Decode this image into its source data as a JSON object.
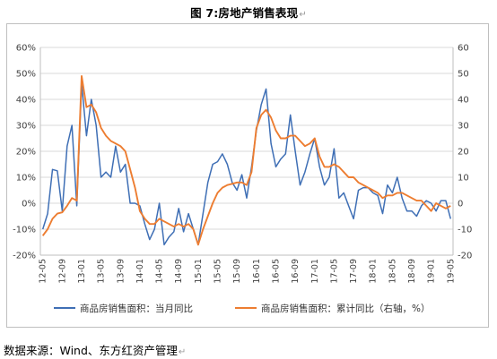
{
  "title": "图 7:房地产销售表现",
  "return_mark": "↵",
  "source": "数据来源：Wind、东方红资产管理",
  "colors": {
    "series1": "#3F6FB5",
    "series2": "#ED7D31",
    "grid": "#d9d9d9",
    "axis": "#bfbfbf"
  },
  "chart_data": {
    "type": "line",
    "title": "",
    "xlabel": "",
    "ylabel": "",
    "ylim_left": [
      -20,
      60
    ],
    "ylim_right": [
      -20,
      60
    ],
    "left_ticks": [
      "-20%",
      "-10%",
      "0%",
      "10%",
      "20%",
      "30%",
      "40%",
      "50%",
      "60%"
    ],
    "right_ticks": [
      "-20",
      "-10",
      "0",
      "10",
      "20",
      "30",
      "40",
      "50",
      "60"
    ],
    "x_labels": [
      "12-05",
      "12-09",
      "13-01",
      "13-05",
      "13-09",
      "14-01",
      "14-05",
      "14-09",
      "15-01",
      "15-05",
      "15-09",
      "16-01",
      "16-05",
      "16-09",
      "17-01",
      "17-05",
      "17-09",
      "18-01",
      "18-05",
      "18-09",
      "19-01",
      "19-05"
    ],
    "legend_position": "bottom",
    "series": [
      {
        "name": "商品房销售面积：当月同比",
        "color": "#3F6FB5",
        "values": [
          -10,
          -4,
          13,
          12.5,
          -3,
          22,
          30,
          -1,
          46,
          26,
          40,
          30,
          10,
          12,
          10,
          22,
          12,
          15,
          0,
          0,
          -1,
          -8,
          -14,
          -10,
          0,
          -16,
          -13,
          -11,
          -2,
          -11,
          -4,
          -10,
          -16,
          -4,
          8,
          15,
          16,
          19,
          15,
          8,
          5,
          11,
          2,
          14,
          28,
          38,
          44,
          23,
          14,
          17,
          19,
          34,
          20,
          7,
          12,
          19,
          25,
          14,
          7,
          10,
          21,
          2,
          4,
          -1,
          -6,
          5,
          6,
          6,
          4,
          3,
          -4,
          7,
          4,
          10,
          2,
          -3,
          -3,
          -5,
          -1,
          1,
          0,
          -3,
          1,
          1,
          -6
        ]
      },
      {
        "name": "商品房销售面积：累计同比（右轴，%）",
        "color": "#ED7D31",
        "values": [
          -12.5,
          -10,
          -6,
          -4,
          -3.5,
          -1,
          2,
          1,
          49,
          37,
          38,
          35,
          29,
          26,
          24,
          23,
          22,
          20,
          13,
          6,
          -3,
          -6,
          -8,
          -8,
          -6,
          -7,
          -8,
          -9,
          -8,
          -9,
          -8,
          -10,
          -16,
          -10,
          -5,
          0,
          4,
          6,
          7,
          7.5,
          8,
          8,
          7,
          12,
          29,
          34,
          36,
          33,
          28,
          25,
          25,
          26,
          26,
          24,
          22,
          23,
          25,
          18,
          14,
          14,
          15,
          14,
          12,
          10,
          10,
          8,
          7,
          6,
          5,
          4,
          2,
          3,
          3,
          4,
          4,
          3,
          2,
          1,
          1,
          -1,
          -3,
          0,
          -1,
          -2,
          -1
        ]
      }
    ]
  }
}
